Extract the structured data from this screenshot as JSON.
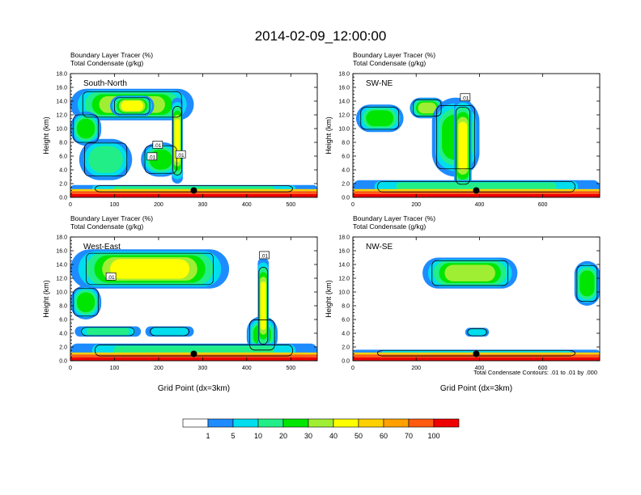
{
  "figure": {
    "title": "2014-02-09_12:00:00",
    "note": "Total Condensate Contours: .01 to .01 by .000"
  },
  "colors": {
    "scale": [
      "#ffffff",
      "#1e8cff",
      "#00ddee",
      "#22ee88",
      "#00e600",
      "#a0ee33",
      "#ffff00",
      "#ffd000",
      "#ffa000",
      "#ff5a10",
      "#ee0000"
    ],
    "frame": "#000000",
    "contour": "#000000",
    "marker": "#000000"
  },
  "colorbar": {
    "labels": [
      "1",
      "5",
      "10",
      "20",
      "30",
      "40",
      "50",
      "60",
      "70",
      "100"
    ]
  },
  "chart_data": [
    {
      "type": "heatmap",
      "panel_label": "South-North",
      "subtitle_1": "Boundary Layer Tracer   (%)",
      "subtitle_2": "Total Condensate   (g/kg)",
      "ylabel": "Height (km)",
      "xlabel": "",
      "xlim": [
        0,
        560
      ],
      "ylim": [
        0,
        18
      ],
      "x_ticks": [
        0,
        100,
        200,
        300,
        400,
        500
      ],
      "x_ticklabels": [
        "0",
        "100",
        "200",
        "300",
        "400",
        "500"
      ],
      "y_ticks": [
        0,
        2,
        4,
        6,
        8,
        10,
        12,
        14,
        16,
        18
      ],
      "y_ticklabels": [
        "0.0",
        "2.0",
        "4.0",
        "6.0",
        "8.0",
        "10.0",
        "12.0",
        "14.0",
        "16.0",
        "18.0"
      ],
      "marker": {
        "x": 280,
        "y": 1.0
      },
      "contour_labels": [
        {
          "text": ".01",
          "x": 185,
          "y": 5.9
        },
        {
          "text": ".01",
          "x": 198,
          "y": 7.6
        },
        {
          "text": ".01",
          "x": 250,
          "y": 6.2
        }
      ],
      "plumes": [
        {
          "x0": 0,
          "x1": 280,
          "y0": 11.2,
          "y1": 15.8,
          "level": 5
        },
        {
          "x0": 0,
          "x1": 70,
          "y0": 7.5,
          "y1": 12.5,
          "level": 4
        },
        {
          "x0": 90,
          "x1": 190,
          "y0": 11.8,
          "y1": 14.8,
          "level": 6
        },
        {
          "x0": 20,
          "x1": 140,
          "y0": 2.5,
          "y1": 8.5,
          "level": 3
        },
        {
          "x0": 160,
          "x1": 250,
          "y0": 3.0,
          "y1": 8.0,
          "level": 4
        },
        {
          "x0": 230,
          "x1": 255,
          "y0": 2.0,
          "y1": 14.5,
          "level": 6
        },
        {
          "x0": 0,
          "x1": 560,
          "y0": 0.7,
          "y1": 1.8,
          "level": 3
        }
      ]
    },
    {
      "type": "heatmap",
      "panel_label": "SW-NE",
      "subtitle_1": "Boundary Layer Tracer   (%)",
      "subtitle_2": "Total Condensate   (g/kg)",
      "ylabel": "Height (km)",
      "xlabel": "",
      "xlim": [
        0,
        780
      ],
      "ylim": [
        0,
        18
      ],
      "x_ticks": [
        0,
        200,
        400,
        600
      ],
      "x_ticklabels": [
        "0",
        "200",
        "400",
        "600"
      ],
      "y_ticks": [
        0,
        2,
        4,
        6,
        8,
        10,
        12,
        14,
        16,
        18
      ],
      "y_ticklabels": [
        "0.0",
        "2.0",
        "4.0",
        "6.0",
        "8.0",
        "10.0",
        "12.0",
        "14.0",
        "16.0",
        "18.0"
      ],
      "marker": {
        "x": 390,
        "y": 1.0
      },
      "contour_labels": [
        {
          "text": ".01",
          "x": 355,
          "y": 14.5
        }
      ],
      "plumes": [
        {
          "x0": 10,
          "x1": 160,
          "y0": 9.5,
          "y1": 13.5,
          "level": 4
        },
        {
          "x0": 180,
          "x1": 290,
          "y0": 11.5,
          "y1": 14.5,
          "level": 5
        },
        {
          "x0": 250,
          "x1": 400,
          "y0": 3.0,
          "y1": 14.5,
          "level": 4
        },
        {
          "x0": 320,
          "x1": 375,
          "y0": 0.5,
          "y1": 14.5,
          "level": 6
        },
        {
          "x0": 0,
          "x1": 780,
          "y0": 0.6,
          "y1": 2.5,
          "level": 3
        }
      ]
    },
    {
      "type": "heatmap",
      "panel_label": "West-East",
      "subtitle_1": "Boundary Layer Tracer   (%)",
      "subtitle_2": "Total Condensate   (g/kg)",
      "ylabel": "Height (km)",
      "xlabel": "Grid Point (dx=3km)",
      "xlim": [
        0,
        560
      ],
      "ylim": [
        0,
        18
      ],
      "x_ticks": [
        0,
        100,
        200,
        300,
        400,
        500
      ],
      "x_ticklabels": [
        "0",
        "100",
        "200",
        "300",
        "400",
        "500"
      ],
      "y_ticks": [
        0,
        2,
        4,
        6,
        8,
        10,
        12,
        14,
        16,
        18
      ],
      "y_ticklabels": [
        "0.0",
        "2.0",
        "4.0",
        "6.0",
        "8.0",
        "10.0",
        "12.0",
        "14.0",
        "16.0",
        "18.0"
      ],
      "marker": {
        "x": 280,
        "y": 1.0
      },
      "contour_labels": [
        {
          "text": ".01",
          "x": 92,
          "y": 12.2
        },
        {
          "text": ".01",
          "x": 440,
          "y": 15.3
        }
      ],
      "plumes": [
        {
          "x0": 0,
          "x1": 360,
          "y0": 10.5,
          "y1": 16.2,
          "level": 6
        },
        {
          "x0": 0,
          "x1": 70,
          "y0": 6.0,
          "y1": 11.0,
          "level": 4
        },
        {
          "x0": 10,
          "x1": 160,
          "y0": 3.5,
          "y1": 5.0,
          "level": 3
        },
        {
          "x0": 170,
          "x1": 280,
          "y0": 3.5,
          "y1": 5.0,
          "level": 2
        },
        {
          "x0": 400,
          "x1": 470,
          "y0": 1.0,
          "y1": 6.5,
          "level": 4
        },
        {
          "x0": 425,
          "x1": 450,
          "y0": 1.0,
          "y1": 15.0,
          "level": 6
        },
        {
          "x0": 0,
          "x1": 560,
          "y0": 0.5,
          "y1": 2.5,
          "level": 3
        }
      ]
    },
    {
      "type": "heatmap",
      "panel_label": "NW-SE",
      "subtitle_1": "Boundary Layer Tracer   (%)",
      "subtitle_2": "Total Condensate   (g/kg)",
      "ylabel": "Height (km)",
      "xlabel": "Grid Point (dx=3km)",
      "xlim": [
        0,
        780
      ],
      "ylim": [
        0,
        18
      ],
      "x_ticks": [
        0,
        200,
        400,
        600
      ],
      "x_ticklabels": [
        "0",
        "200",
        "400",
        "600"
      ],
      "y_ticks": [
        0,
        2,
        4,
        6,
        8,
        10,
        12,
        14,
        16,
        18
      ],
      "y_ticklabels": [
        "0.0",
        "2.0",
        "4.0",
        "6.0",
        "8.0",
        "10.0",
        "12.0",
        "14.0",
        "16.0",
        "18.0"
      ],
      "marker": {
        "x": 390,
        "y": 1.0
      },
      "contour_labels": [],
      "plumes": [
        {
          "x0": 220,
          "x1": 520,
          "y0": 10.5,
          "y1": 15.0,
          "level": 5
        },
        {
          "x0": 355,
          "x1": 430,
          "y0": 3.5,
          "y1": 4.8,
          "level": 2
        },
        {
          "x0": 700,
          "x1": 780,
          "y0": 8.0,
          "y1": 14.5,
          "level": 4
        },
        {
          "x0": 0,
          "x1": 780,
          "y0": 0.6,
          "y1": 1.6,
          "level": 2
        }
      ]
    }
  ]
}
